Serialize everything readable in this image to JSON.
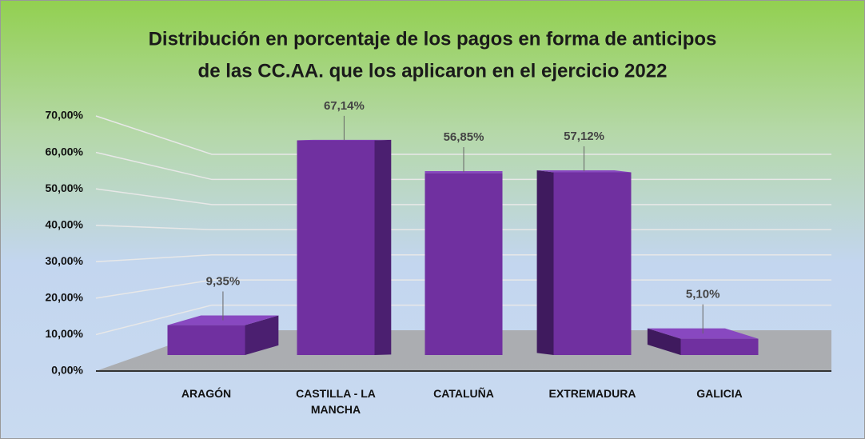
{
  "chart_data": {
    "type": "bar3d",
    "title": [
      "Distribución en porcentaje de los pagos en forma de anticipos",
      "de las CC.AA. que los aplicaron en el ejercicio 2022"
    ],
    "categories": [
      "ARAGÓN",
      "CASTILLA - LA MANCHA",
      "CATALUÑA",
      "EXTREMADURA",
      "GALICIA"
    ],
    "values": [
      9.35,
      67.14,
      56.85,
      57.12,
      5.1
    ],
    "value_labels": [
      "9,35%",
      "67,14%",
      "56,85%",
      "57,12%",
      "5,10%"
    ],
    "color": "#7030a0",
    "ylim": [
      0,
      70
    ],
    "yticks": [
      {
        "value": 0,
        "label": "0,00%"
      },
      {
        "value": 10,
        "label": "10,00%"
      },
      {
        "value": 20,
        "label": "20,00%"
      },
      {
        "value": 30,
        "label": "30,00%"
      },
      {
        "value": 40,
        "label": "40,00%"
      },
      {
        "value": 50,
        "label": "50,00%"
      },
      {
        "value": 60,
        "label": "60,00%"
      },
      {
        "value": 70,
        "label": "70,00%"
      }
    ],
    "grid": true
  }
}
